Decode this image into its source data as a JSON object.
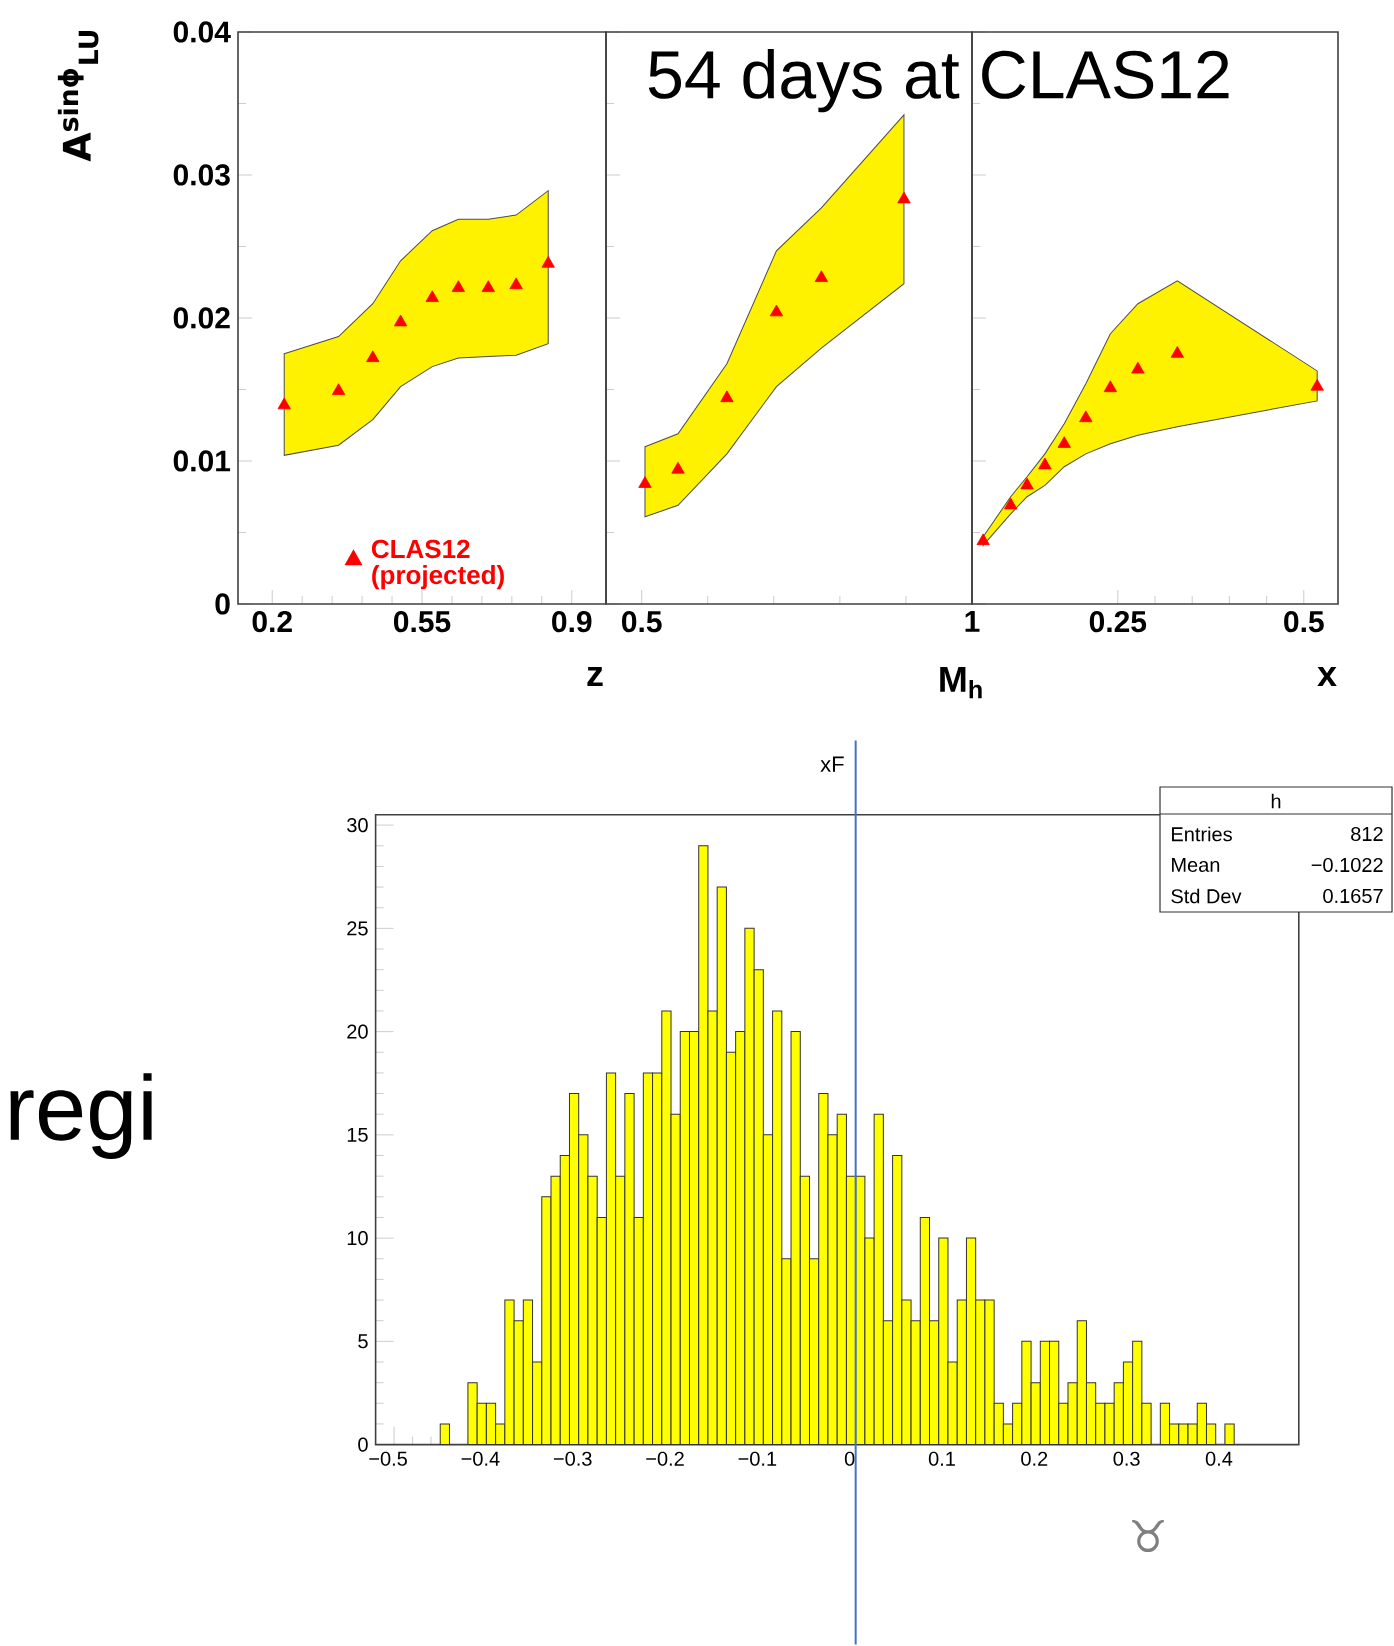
{
  "chart_data": [
    {
      "type": "scatter",
      "xlabel": "z",
      "ylabel": "A$^{sinϕ}$$_{LU}$",
      "xlim": [
        0.12,
        0.98
      ],
      "xticks": [
        0.2,
        0.55,
        0.9
      ],
      "ylim": [
        0,
        0.04
      ],
      "yticks": [
        0,
        0.01,
        0.02,
        0.03,
        0.04
      ],
      "marker": "triangle",
      "legend": "bottom",
      "series": [
        {
          "name": "CLAS12 (projected)",
          "color": "#ff0000",
          "x": [
            0.228,
            0.355,
            0.435,
            0.5,
            0.574,
            0.635,
            0.705,
            0.77,
            0.845
          ],
          "values": [
            0.0139,
            0.0149,
            0.0172,
            0.0197,
            0.0214,
            0.0221,
            0.0221,
            0.0223,
            0.0238
          ],
          "lower": [
            0.0104,
            0.0111,
            0.0129,
            0.0152,
            0.0166,
            0.0172,
            0.0173,
            0.0174,
            0.0182
          ],
          "upper": [
            0.0175,
            0.0187,
            0.021,
            0.024,
            0.0261,
            0.0269,
            0.0269,
            0.0272,
            0.0289
          ]
        }
      ]
    },
    {
      "type": "scatter",
      "xlabel": "M$_{h}$",
      "xlim": [
        0.446,
        1.0
      ],
      "xticks": [
        0.5,
        1
      ],
      "ylim": [
        0,
        0.04
      ],
      "yticks": [
        0,
        0.01,
        0.02,
        0.03,
        0.04
      ],
      "marker": "triangle",
      "tick_labels": "x",
      "annotations": [
        "54 days at CLAS12"
      ],
      "series": [
        {
          "color": "#ff0000",
          "x": [
            0.505,
            0.555,
            0.629,
            0.704,
            0.772,
            0.897
          ],
          "values": [
            0.0084,
            0.0094,
            0.0144,
            0.0204,
            0.0228,
            0.0283
          ],
          "lower": [
            0.0061,
            0.0069,
            0.0105,
            0.0152,
            0.0179,
            0.0224
          ],
          "upper": [
            0.011,
            0.0119,
            0.0168,
            0.0247,
            0.0277,
            0.0342
          ]
        }
      ]
    },
    {
      "type": "scatter",
      "xlabel": "x",
      "xlim": [
        0.054,
        0.546
      ],
      "xticks": [
        0.25,
        0.5
      ],
      "ylim": [
        0,
        0.04
      ],
      "yticks": [
        0,
        0.01,
        0.02,
        0.03,
        0.04
      ],
      "marker": "triangle",
      "tick_labels": "x",
      "series": [
        {
          "color": "#ff0000",
          "x": [
            0.069,
            0.106,
            0.128,
            0.152,
            0.178,
            0.207,
            0.24,
            0.277,
            0.33,
            0.518
          ],
          "values": [
            0.0044,
            0.0069,
            0.0083,
            0.0097,
            0.0112,
            0.013,
            0.0151,
            0.0164,
            0.0175,
            0.0152
          ],
          "lower": [
            0.0041,
            0.0063,
            0.0075,
            0.0083,
            0.0096,
            0.0105,
            0.0112,
            0.0118,
            0.0124,
            0.0142
          ],
          "upper": [
            0.0047,
            0.0075,
            0.0089,
            0.0105,
            0.0126,
            0.0154,
            0.0189,
            0.021,
            0.0226,
            0.0163
          ]
        }
      ]
    },
    {
      "type": "histogram",
      "title": "xF",
      "color": "#ffff00",
      "xlim": [
        -0.52,
        0.48
      ],
      "ylim": [
        0,
        30.5
      ],
      "xticks": [
        {
          "value": -0.5,
          "label": "−0.5"
        },
        {
          "value": -0.4,
          "label": "−0.4"
        },
        {
          "value": -0.3,
          "label": "−0.3"
        },
        {
          "value": -0.2,
          "label": "−0.2"
        },
        {
          "value": -0.1,
          "label": "−0.1"
        },
        0,
        0.1,
        0.2,
        0.3,
        0.4
      ],
      "yticks": [
        0,
        5,
        10,
        15,
        20,
        25,
        30
      ],
      "bins": [
        -0.52,
        -0.51,
        -0.5,
        -0.49,
        -0.48,
        -0.47,
        -0.46,
        -0.45,
        -0.44,
        -0.43,
        -0.42,
        -0.41,
        -0.4,
        -0.39,
        -0.38,
        -0.37,
        -0.36,
        -0.35,
        -0.34,
        -0.33,
        -0.32,
        -0.31,
        -0.3,
        -0.29,
        -0.28,
        -0.27,
        -0.26,
        -0.25,
        -0.24,
        -0.23,
        -0.22,
        -0.21,
        -0.2,
        -0.19,
        -0.18,
        -0.17,
        -0.16,
        -0.15,
        -0.14,
        -0.13,
        -0.12,
        -0.11,
        -0.1,
        -0.09,
        -0.08,
        -0.07,
        -0.06,
        -0.05,
        -0.04,
        -0.03,
        -0.02,
        -0.01,
        0,
        0.01,
        0.02,
        0.03,
        0.04,
        0.05,
        0.06,
        0.07,
        0.08,
        0.09,
        0.1,
        0.11,
        0.12,
        0.13,
        0.14,
        0.15,
        0.16,
        0.17,
        0.18,
        0.19,
        0.2,
        0.21,
        0.22,
        0.23,
        0.24,
        0.25,
        0.26,
        0.27,
        0.28,
        0.29,
        0.3,
        0.31,
        0.32,
        0.33,
        0.34,
        0.35,
        0.36,
        0.37,
        0.38,
        0.39,
        0.4,
        0.41,
        0.42,
        0.43,
        0.44,
        0.45,
        0.46,
        0.47,
        0.48
      ],
      "values": [
        0,
        0,
        0,
        0,
        0,
        0,
        0,
        1,
        0,
        0,
        3,
        2,
        2,
        1,
        7,
        6,
        7,
        4,
        12,
        13,
        14,
        17,
        15,
        13,
        11,
        18,
        13,
        17,
        11,
        18,
        18,
        21,
        16,
        20,
        20,
        29,
        21,
        27,
        19,
        20,
        25,
        23,
        15,
        21,
        9,
        20,
        13,
        9,
        17,
        15,
        16,
        13,
        13,
        10,
        16,
        6,
        14,
        7,
        6,
        11,
        6,
        10,
        4,
        7,
        10,
        7,
        7,
        2,
        1,
        2,
        5,
        3,
        5,
        5,
        2,
        3,
        6,
        3,
        2,
        2,
        3,
        4,
        5,
        2,
        0,
        2,
        1,
        1,
        1,
        2,
        1,
        0,
        1,
        0,
        0,
        0,
        0,
        0,
        0,
        0
      ],
      "ref_lines": [
        {
          "axis": "x",
          "value": 0,
          "color": "#4472c4"
        }
      ],
      "annotations": [
        "h",
        "Entries",
        "812",
        "Mean",
        "−0.1022",
        "Std Dev",
        "0.1657",
        "regi",
        "♉"
      ]
    }
  ]
}
